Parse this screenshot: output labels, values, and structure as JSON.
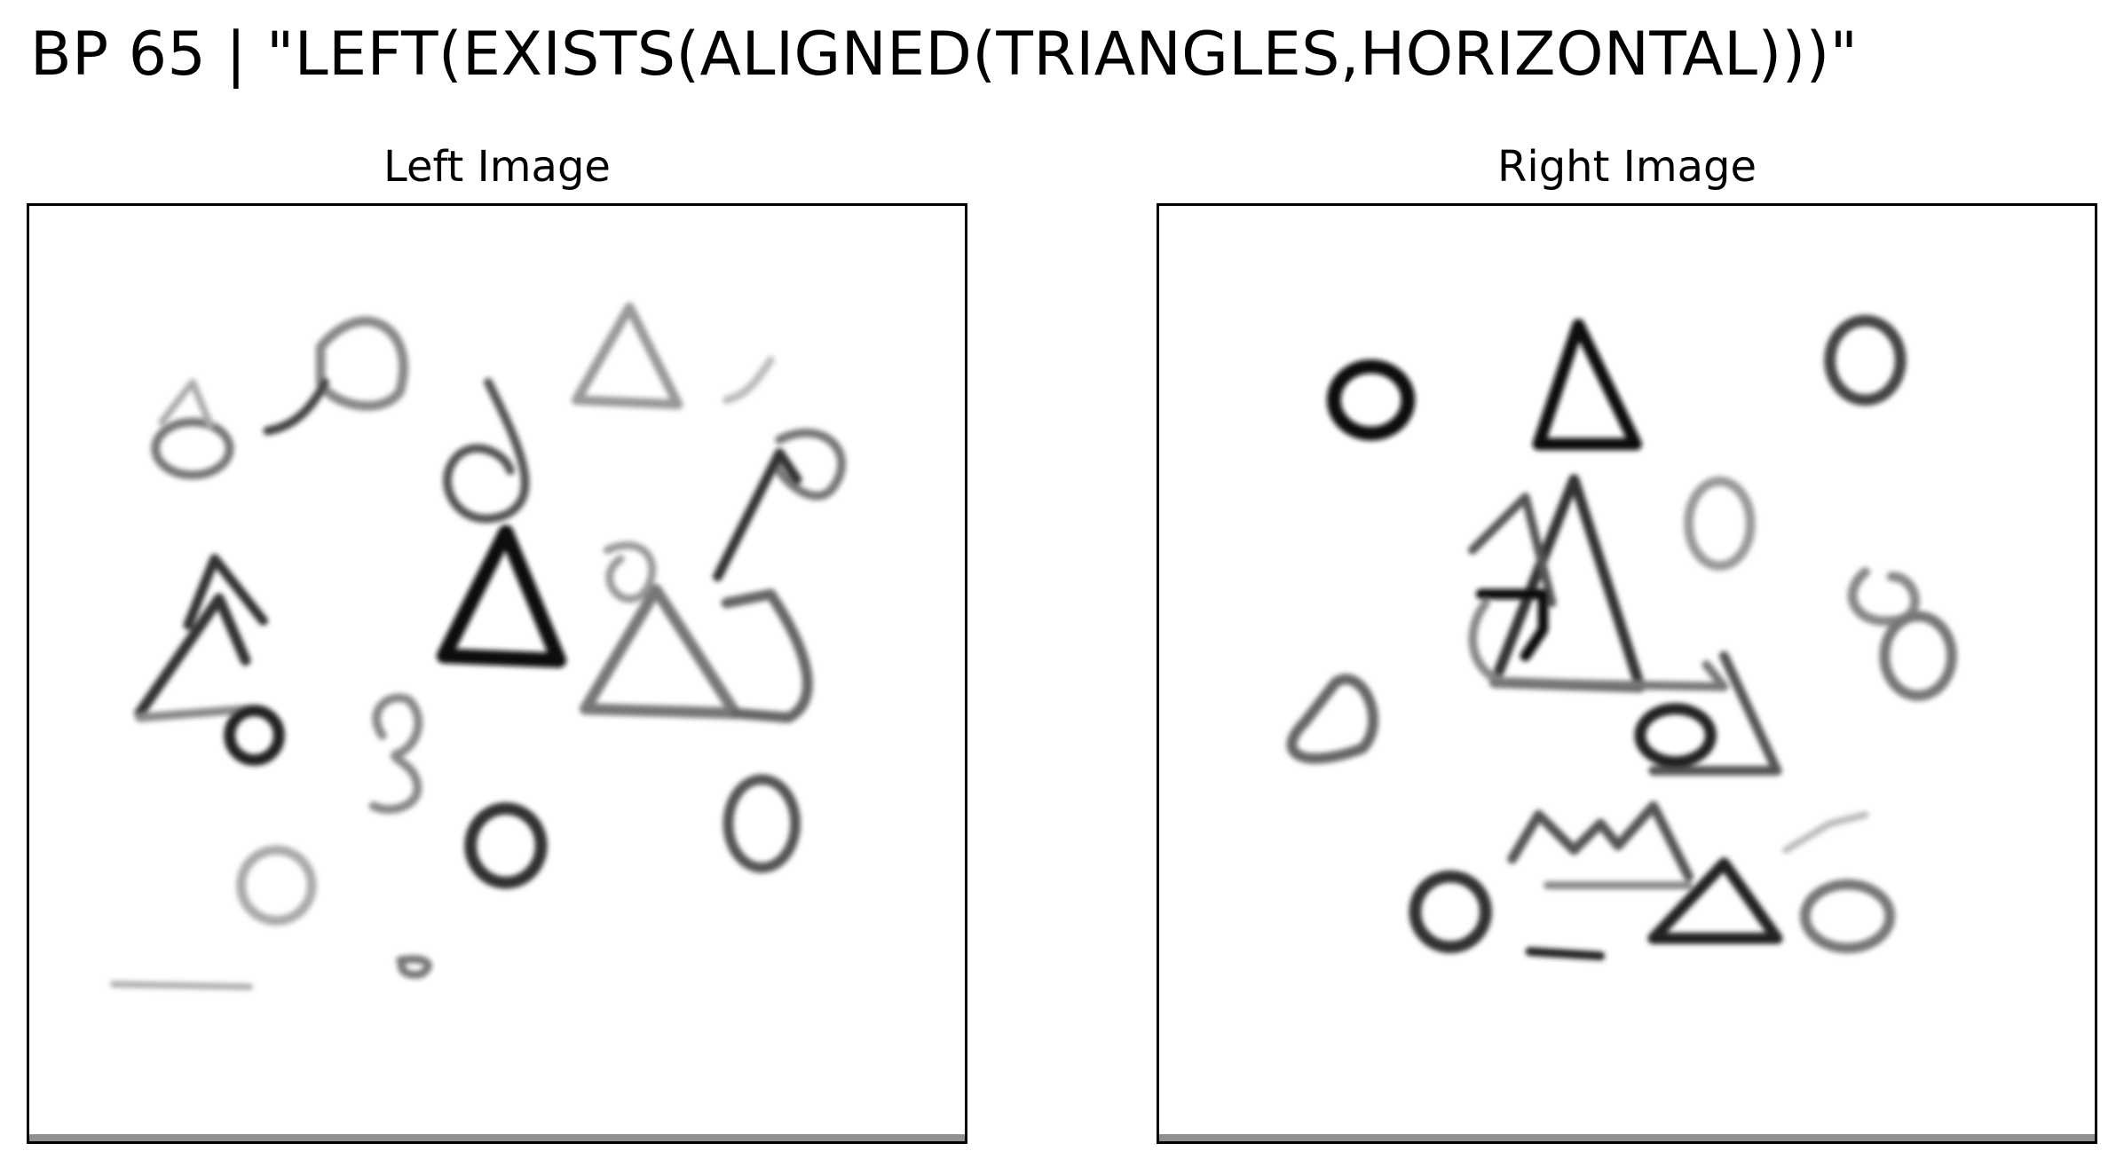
{
  "figure": {
    "title": "BP 65 | \"LEFT(EXISTS(ALIGNED(TRIANGLES,HORIZONTAL)))\""
  },
  "panels": [
    {
      "id": "left",
      "title": "Left Image"
    },
    {
      "id": "right",
      "title": "Right Image"
    }
  ],
  "colors": {
    "background": "#ffffff",
    "frame": "#000000",
    "ink_dark": "#111111",
    "ink_mid": "#555555",
    "ink_light": "#999999"
  }
}
